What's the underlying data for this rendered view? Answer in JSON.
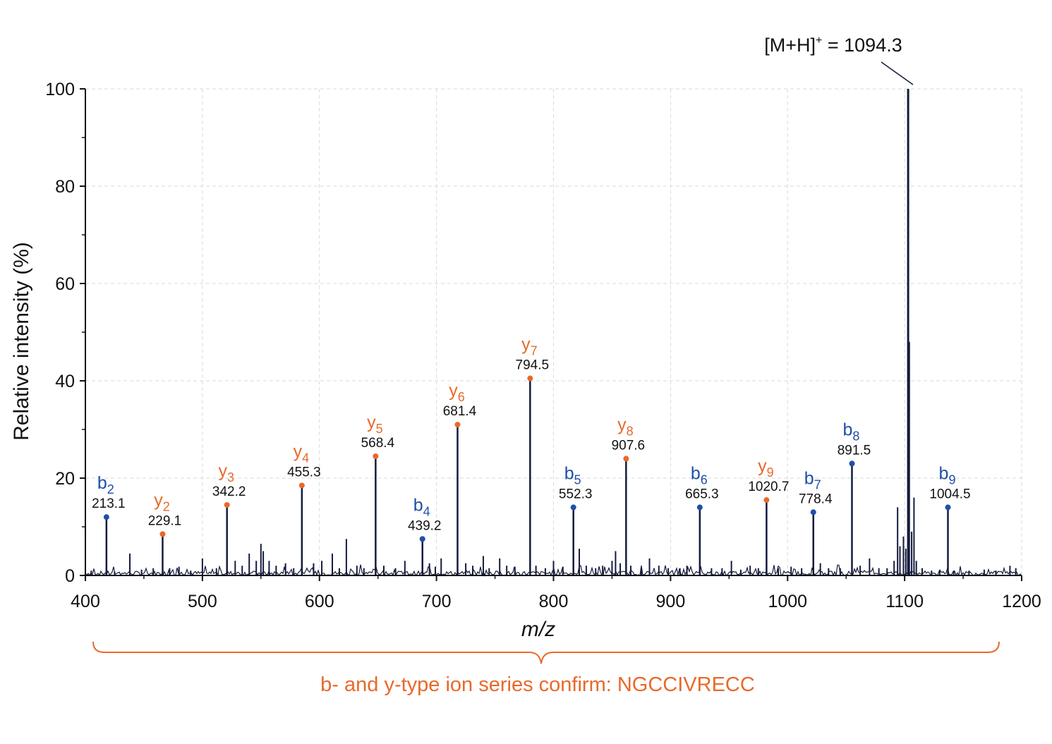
{
  "colors": {
    "b_ion": "#1f4fa8",
    "y_ion": "#e8692a",
    "spectrum": "#141b3d",
    "grid": "#d9d9d9",
    "annotation": "#e8692a"
  },
  "chart_data": {
    "type": "bar",
    "xlabel": "m/z",
    "ylabel": "Relative intensity (%)",
    "xlim": [
      400,
      1200
    ],
    "ylim": [
      0,
      100
    ],
    "xticks": [
      400,
      500,
      600,
      700,
      800,
      900,
      1000,
      1100,
      1200
    ],
    "yticks": [
      0,
      20,
      40,
      60,
      80,
      100
    ],
    "grid": true,
    "precursor": {
      "prefix": "[M+H]",
      "superscript": "+",
      "value_text": " = 1094.3",
      "x": 1103,
      "y": 100
    },
    "labeled_peaks": [
      {
        "series": "b",
        "index": "2",
        "label": "213.1",
        "x": 418,
        "y": 12
      },
      {
        "series": "y",
        "index": "2",
        "label": "229.1",
        "x": 466,
        "y": 8.5
      },
      {
        "series": "y",
        "index": "3",
        "label": "342.2",
        "x": 521,
        "y": 14.5
      },
      {
        "series": "y",
        "index": "4",
        "label": "455.3",
        "x": 585,
        "y": 18.5
      },
      {
        "series": "y",
        "index": "5",
        "label": "568.4",
        "x": 648,
        "y": 24.5
      },
      {
        "series": "b",
        "index": "4",
        "label": "439.2",
        "x": 688,
        "y": 7.5
      },
      {
        "series": "y",
        "index": "6",
        "label": "681.4",
        "x": 718,
        "y": 31
      },
      {
        "series": "y",
        "index": "7",
        "label": "794.5",
        "x": 780,
        "y": 40.5
      },
      {
        "series": "b",
        "index": "5",
        "label": "552.3",
        "x": 817,
        "y": 14
      },
      {
        "series": "y",
        "index": "8",
        "label": "907.6",
        "x": 862,
        "y": 24
      },
      {
        "series": "b",
        "index": "6",
        "label": "665.3",
        "x": 925,
        "y": 14
      },
      {
        "series": "y",
        "index": "9",
        "label": "1020.7",
        "x": 982,
        "y": 15.5
      },
      {
        "series": "b",
        "index": "7",
        "label": "778.4",
        "x": 1022,
        "y": 13
      },
      {
        "series": "b",
        "index": "8",
        "label": "891.5",
        "x": 1055,
        "y": 23
      },
      {
        "series": "b",
        "index": "9",
        "label": "1004.5",
        "x": 1137,
        "y": 14
      }
    ],
    "minor_peaks": [
      {
        "x": 405,
        "y": 1.0
      },
      {
        "x": 425,
        "y": 0.8
      },
      {
        "x": 438,
        "y": 4.5
      },
      {
        "x": 448,
        "y": 1.2
      },
      {
        "x": 458,
        "y": 1.5
      },
      {
        "x": 472,
        "y": 1.5
      },
      {
        "x": 480,
        "y": 1.8
      },
      {
        "x": 490,
        "y": 1.0
      },
      {
        "x": 500,
        "y": 3.5
      },
      {
        "x": 512,
        "y": 1.5
      },
      {
        "x": 528,
        "y": 3.0
      },
      {
        "x": 534,
        "y": 2.0
      },
      {
        "x": 540,
        "y": 4.5
      },
      {
        "x": 546,
        "y": 3.0
      },
      {
        "x": 550,
        "y": 6.5
      },
      {
        "x": 552,
        "y": 5.0
      },
      {
        "x": 557,
        "y": 3.0
      },
      {
        "x": 563,
        "y": 2.0
      },
      {
        "x": 571,
        "y": 2.5
      },
      {
        "x": 578,
        "y": 1.5
      },
      {
        "x": 595,
        "y": 2.5
      },
      {
        "x": 602,
        "y": 3.0
      },
      {
        "x": 611,
        "y": 4.5
      },
      {
        "x": 617,
        "y": 1.5
      },
      {
        "x": 623,
        "y": 7.5
      },
      {
        "x": 632,
        "y": 2.0
      },
      {
        "x": 638,
        "y": 1.5
      },
      {
        "x": 655,
        "y": 2.0
      },
      {
        "x": 665,
        "y": 1.5
      },
      {
        "x": 673,
        "y": 3.0
      },
      {
        "x": 694,
        "y": 2.5
      },
      {
        "x": 699,
        "y": 1.8
      },
      {
        "x": 704,
        "y": 3.5
      },
      {
        "x": 725,
        "y": 2.5
      },
      {
        "x": 731,
        "y": 2.0
      },
      {
        "x": 740,
        "y": 4.0
      },
      {
        "x": 745,
        "y": 1.5
      },
      {
        "x": 754,
        "y": 3.5
      },
      {
        "x": 760,
        "y": 2.0
      },
      {
        "x": 767,
        "y": 1.8
      },
      {
        "x": 785,
        "y": 2.0
      },
      {
        "x": 793,
        "y": 1.5
      },
      {
        "x": 800,
        "y": 3.0
      },
      {
        "x": 808,
        "y": 1.8
      },
      {
        "x": 822,
        "y": 5.5
      },
      {
        "x": 828,
        "y": 2.0
      },
      {
        "x": 836,
        "y": 1.5
      },
      {
        "x": 842,
        "y": 2.0
      },
      {
        "x": 850,
        "y": 3.0
      },
      {
        "x": 853,
        "y": 5.0
      },
      {
        "x": 857,
        "y": 2.5
      },
      {
        "x": 866,
        "y": 2.0
      },
      {
        "x": 875,
        "y": 1.5
      },
      {
        "x": 882,
        "y": 3.5
      },
      {
        "x": 890,
        "y": 2.0
      },
      {
        "x": 898,
        "y": 1.5
      },
      {
        "x": 908,
        "y": 1.5
      },
      {
        "x": 914,
        "y": 2.0
      },
      {
        "x": 935,
        "y": 1.5
      },
      {
        "x": 944,
        "y": 1.5
      },
      {
        "x": 952,
        "y": 3.0
      },
      {
        "x": 960,
        "y": 1.2
      },
      {
        "x": 968,
        "y": 2.0
      },
      {
        "x": 975,
        "y": 1.5
      },
      {
        "x": 992,
        "y": 1.5
      },
      {
        "x": 1003,
        "y": 1.8
      },
      {
        "x": 1012,
        "y": 1.5
      },
      {
        "x": 1028,
        "y": 2.5
      },
      {
        "x": 1035,
        "y": 1.5
      },
      {
        "x": 1045,
        "y": 1.5
      },
      {
        "x": 1062,
        "y": 2.0
      },
      {
        "x": 1070,
        "y": 3.5
      },
      {
        "x": 1078,
        "y": 1.5
      },
      {
        "x": 1085,
        "y": 1.5
      },
      {
        "x": 1091,
        "y": 3.0
      },
      {
        "x": 1094,
        "y": 14.0
      },
      {
        "x": 1096,
        "y": 6.0
      },
      {
        "x": 1099,
        "y": 8.0
      },
      {
        "x": 1101,
        "y": 5.5
      },
      {
        "x": 1104,
        "y": 48.0
      },
      {
        "x": 1106,
        "y": 9.0
      },
      {
        "x": 1108,
        "y": 16.0
      },
      {
        "x": 1110,
        "y": 3.0
      },
      {
        "x": 1115,
        "y": 1.5
      },
      {
        "x": 1123,
        "y": 1.0
      },
      {
        "x": 1130,
        "y": 1.2
      },
      {
        "x": 1142,
        "y": 1.0
      },
      {
        "x": 1155,
        "y": 1.0
      },
      {
        "x": 1168,
        "y": 1.2
      },
      {
        "x": 1178,
        "y": 1.0
      },
      {
        "x": 1190,
        "y": 2.0
      },
      {
        "x": 1195,
        "y": 1.5
      }
    ],
    "annotation": "b- and y-type ion series confirm: NGCCIVRECC"
  }
}
